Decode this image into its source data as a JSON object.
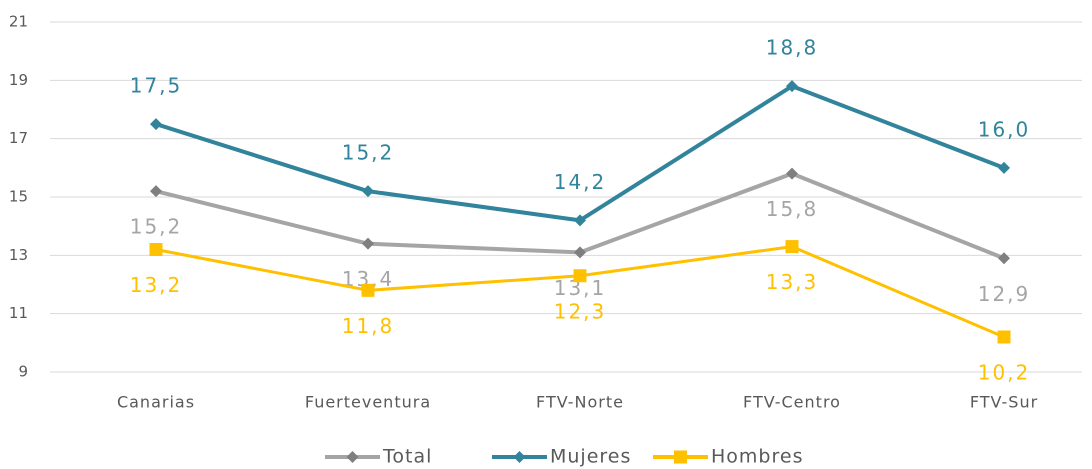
{
  "chart_data": {
    "type": "line",
    "categories": [
      "Canarias",
      "Fuerteventura",
      "FTV-Norte",
      "FTV-Centro",
      "FTV-Sur"
    ],
    "series": [
      {
        "name": "Total",
        "color": "#a5a5a5",
        "marker_color": "#7f7f7f",
        "marker": "diamond",
        "values": [
          15.2,
          13.4,
          13.1,
          15.8,
          12.9
        ],
        "value_labels": [
          "15,2",
          "13,4",
          "13,1",
          "15,8",
          "12,9"
        ]
      },
      {
        "name": "Mujeres",
        "color": "#31849b",
        "marker_color": "#31849b",
        "marker": "diamond",
        "values": [
          17.5,
          15.2,
          14.2,
          18.8,
          16.0
        ],
        "value_labels": [
          "17,5",
          "15,2",
          "14,2",
          "18,8",
          "16,0"
        ]
      },
      {
        "name": "Hombres",
        "color": "#ffc000",
        "marker_color": "#ffc000",
        "marker": "square",
        "values": [
          13.2,
          11.8,
          12.3,
          13.3,
          10.2
        ],
        "value_labels": [
          "13,2",
          "11,8",
          "12,3",
          "13,3",
          "10,2"
        ]
      }
    ],
    "ylim": [
      9,
      21
    ],
    "yticks": [
      9,
      11,
      13,
      15,
      17,
      19,
      21
    ],
    "grid": true,
    "legend": "bottom"
  }
}
